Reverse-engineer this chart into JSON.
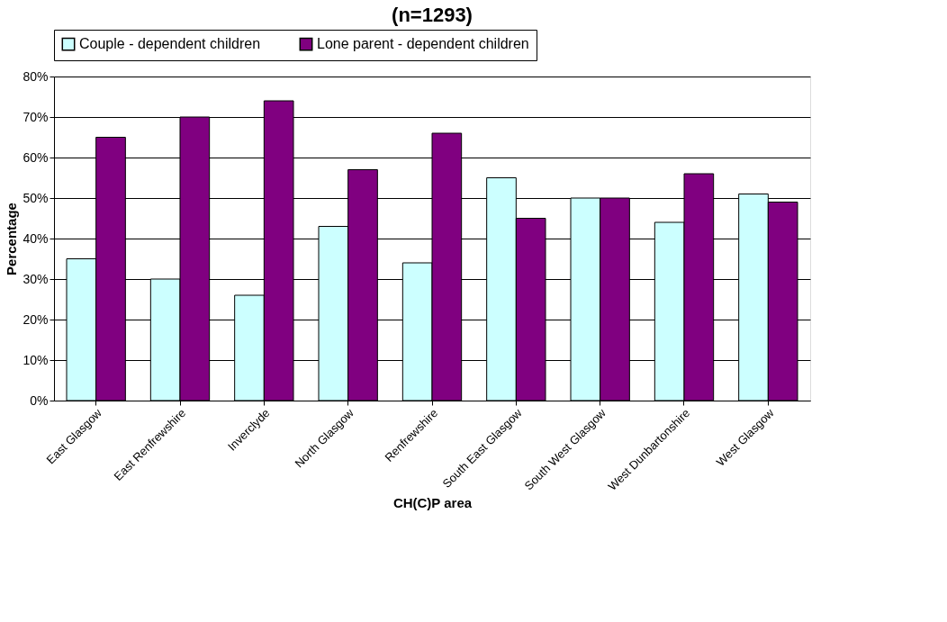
{
  "chart_data": {
    "type": "bar",
    "title": "(n=1293)",
    "xlabel": "CH(C)P area",
    "ylabel": "Percentage",
    "categories": [
      "East Glasgow",
      "East Renfrewshire",
      "Inverclyde",
      "North Glasgow",
      "Renfrewshire",
      "South East Glasgow",
      "South West Glasgow",
      "West Dunbartonshire",
      "West Glasgow"
    ],
    "series": [
      {
        "name": "Couple - dependent children",
        "color": "#ccffff",
        "values": [
          35,
          30,
          26,
          43,
          34,
          55,
          50,
          44,
          51
        ]
      },
      {
        "name": "Lone parent - dependent children",
        "color": "#800080",
        "values": [
          65,
          70,
          74,
          57,
          66,
          45,
          50,
          56,
          49
        ]
      }
    ],
    "ylim": [
      0,
      80
    ],
    "yticks": [
      {
        "value": 0,
        "label": "0%"
      },
      {
        "value": 10,
        "label": "10%"
      },
      {
        "value": 20,
        "label": "20%"
      },
      {
        "value": 30,
        "label": "30%"
      },
      {
        "value": 40,
        "label": "40%"
      },
      {
        "value": 50,
        "label": "50%"
      },
      {
        "value": 60,
        "label": "60%"
      },
      {
        "value": 70,
        "label": "70%"
      },
      {
        "value": 80,
        "label": "80%"
      }
    ],
    "grid": "y",
    "legend": "top"
  }
}
